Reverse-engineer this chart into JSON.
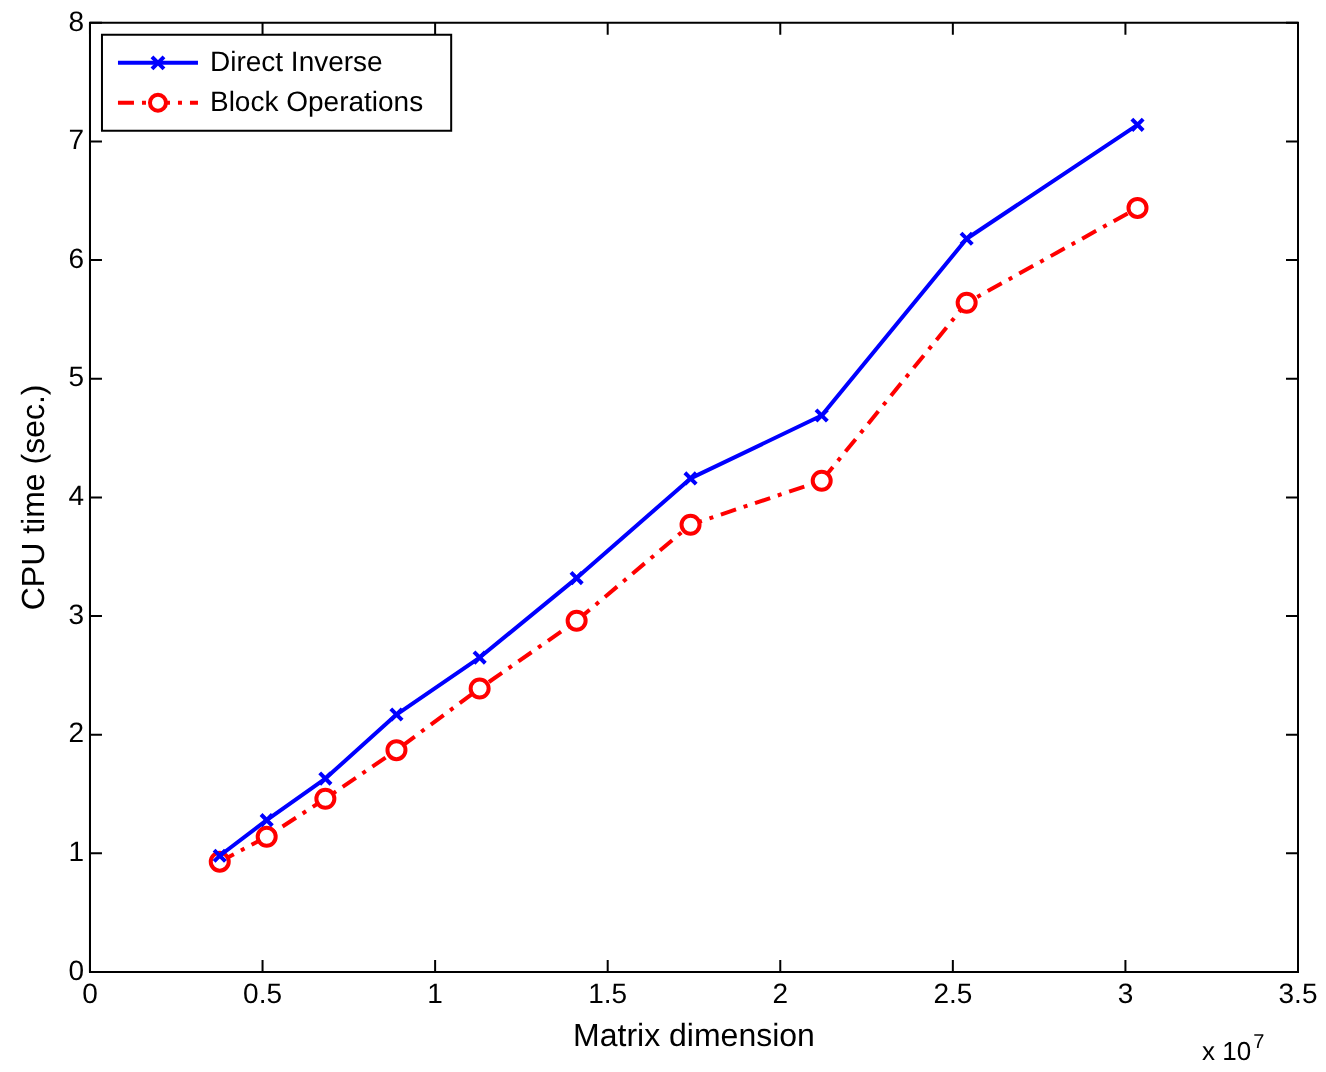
{
  "chart_data": {
    "type": "line",
    "xlabel": "Matrix dimension",
    "ylabel": "CPU time (sec.)",
    "x": [
      0.376,
      0.512,
      0.682,
      0.888,
      1.129,
      1.41,
      1.74,
      2.12,
      2.54,
      3.035
    ],
    "series": [
      {
        "name": "Direct Inverse",
        "color": "#0000ff",
        "marker": "cross",
        "line_style": "solid",
        "values": [
          0.98,
          1.28,
          1.63,
          2.17,
          2.65,
          3.32,
          4.16,
          4.69,
          6.18,
          7.14
        ]
      },
      {
        "name": "Block Operations",
        "color": "#ff0000",
        "marker": "circle",
        "line_style": "dashed",
        "values": [
          0.93,
          1.14,
          1.46,
          1.87,
          2.39,
          2.96,
          3.77,
          4.14,
          5.64,
          6.44
        ]
      }
    ],
    "xlim": [
      0,
      3.5
    ],
    "xticks": [
      0,
      0.5,
      1,
      1.5,
      2,
      2.5,
      3,
      3.5
    ],
    "ylim": [
      0,
      8
    ],
    "yticks": [
      0,
      1,
      2,
      3,
      4,
      5,
      6,
      7,
      8
    ],
    "grid": false,
    "legend": "top left",
    "annotations": [
      "x 10$^{7}$"
    ]
  }
}
